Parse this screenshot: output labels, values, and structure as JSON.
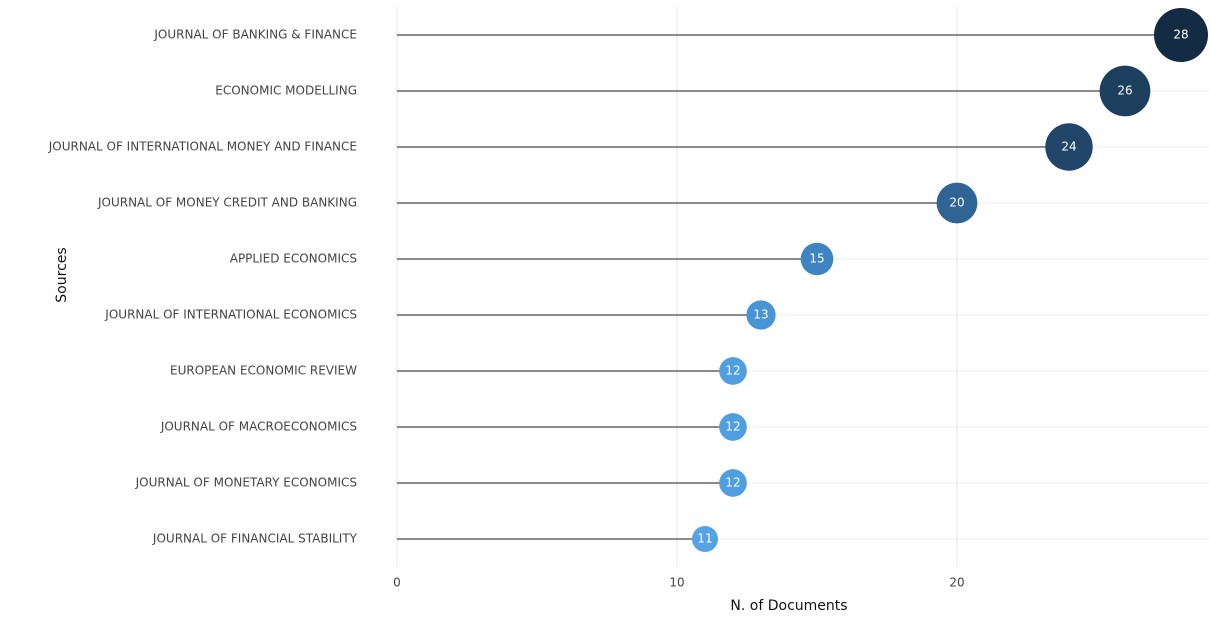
{
  "chart_data": {
    "type": "lollipop",
    "x_label": "N. of Documents",
    "y_label": "Sources",
    "categories": [
      "JOURNAL OF BANKING & FINANCE",
      "ECONOMIC MODELLING",
      "JOURNAL OF INTERNATIONAL MONEY AND FINANCE",
      "JOURNAL OF MONEY CREDIT AND BANKING",
      "APPLIED ECONOMICS",
      "JOURNAL OF INTERNATIONAL ECONOMICS",
      "EUROPEAN ECONOMIC REVIEW",
      "JOURNAL OF MACROECONOMICS",
      "JOURNAL OF MONETARY ECONOMICS",
      "JOURNAL OF FINANCIAL STABILITY"
    ],
    "values": [
      28,
      26,
      24,
      20,
      15,
      13,
      12,
      12,
      12,
      11
    ],
    "colors": [
      "#132b43",
      "#1d3f5e",
      "#22466a",
      "#2f6494",
      "#3e84c1",
      "#4895d6",
      "#4f9ee0",
      "#4f9ee0",
      "#4f9ee0",
      "#53a3e6"
    ],
    "stem_color": "#8a8a8a",
    "xlim": [
      0,
      29
    ],
    "xticks": [
      0,
      10,
      20
    ],
    "grid": true
  }
}
